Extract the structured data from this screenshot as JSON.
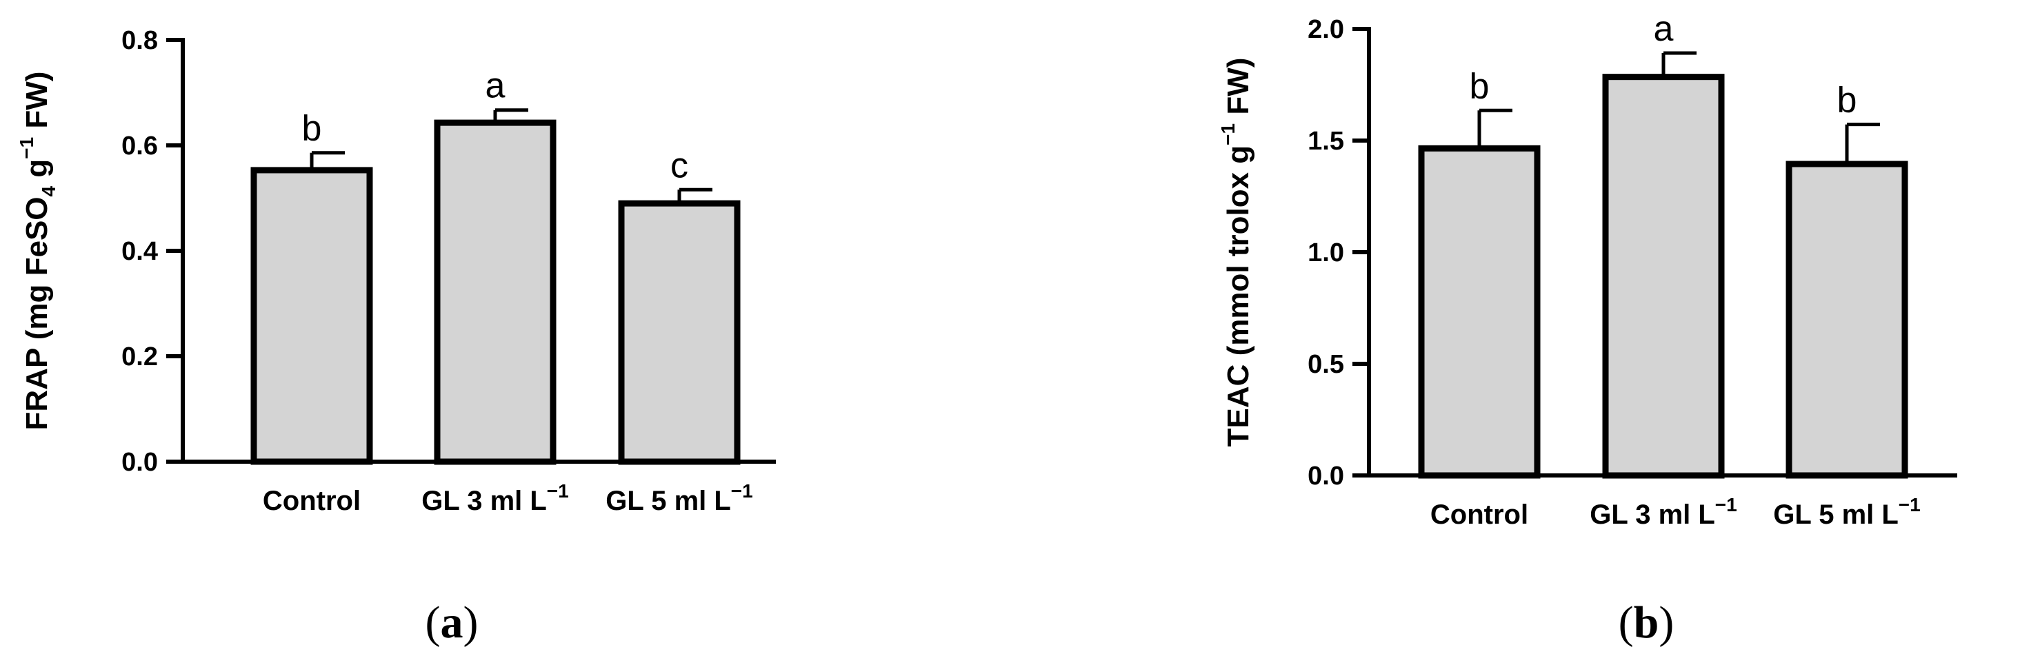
{
  "chart_data": [
    {
      "type": "bar",
      "panel": "a",
      "ylabel": {
        "prefix": "FRAP (mg FeSO",
        "sub": "4",
        "mid": " g",
        "sup": "−1",
        "suffix": " FW)"
      },
      "ylim": [
        0,
        0.8
      ],
      "yticks": [
        "0.0",
        "0.2",
        "0.4",
        "0.6",
        "0.8"
      ],
      "categories": [
        {
          "text": "Control",
          "sup": ""
        },
        {
          "text": "GL 3 ml L",
          "sup": "−1"
        },
        {
          "text": "GL 5 ml L",
          "sup": "−1"
        }
      ],
      "values": [
        0.553,
        0.643,
        0.49
      ],
      "errors": [
        0.033,
        0.024,
        0.026
      ],
      "letters": [
        "b",
        "a",
        "c"
      ],
      "bar_color": "#d4d4d4"
    },
    {
      "type": "bar",
      "panel": "b",
      "ylabel": {
        "prefix": "TEAC (mmol trolox g",
        "sub": "",
        "mid": "",
        "sup": "−1",
        "suffix": " FW)"
      },
      "ylim": [
        0,
        2.0
      ],
      "yticks": [
        "0.0",
        "0.5",
        "1.0",
        "1.5",
        "2.0"
      ],
      "categories": [
        {
          "text": "Control",
          "sup": ""
        },
        {
          "text": "GL 3 ml L",
          "sup": "−1"
        },
        {
          "text": "GL 5 ml L",
          "sup": "−1"
        }
      ],
      "values": [
        1.465,
        1.785,
        1.395
      ],
      "errors": [
        0.17,
        0.107,
        0.177
      ],
      "letters": [
        "b",
        "a",
        "b"
      ],
      "bar_color": "#d4d4d4"
    }
  ],
  "panel_labels": [
    {
      "open": "(",
      "letter": "a",
      "close": ")"
    },
    {
      "open": "(",
      "letter": "b",
      "close": ")"
    }
  ]
}
